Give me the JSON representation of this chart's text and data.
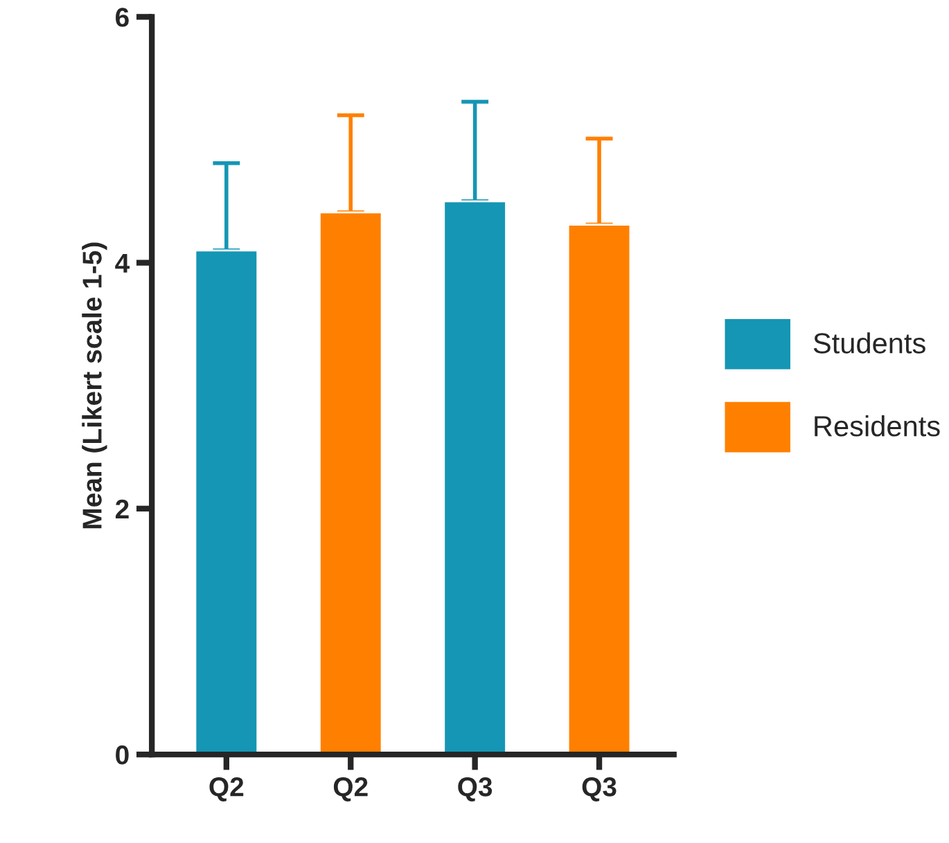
{
  "chart_data": {
    "type": "bar",
    "ylabel": "Mean (Likert scale 1-5)",
    "categories": [
      "Q2",
      "Q2",
      "Q3",
      "Q3"
    ],
    "series": [
      {
        "name": "Students",
        "color": "#1496b4",
        "values": [
          4.1,
          null,
          4.5,
          null
        ],
        "errors": [
          [
            4.1,
            4.81
          ],
          null,
          [
            4.5,
            5.31
          ],
          null
        ]
      },
      {
        "name": "Residents",
        "color": "#ff8000",
        "values": [
          null,
          4.41,
          null,
          4.31
        ],
        "errors": [
          null,
          [
            4.41,
            5.2
          ],
          null,
          [
            4.31,
            5.01
          ]
        ]
      }
    ],
    "ylim": [
      0,
      6
    ],
    "yticks": [
      0,
      2,
      4,
      6
    ],
    "grid": false,
    "legend": "right"
  }
}
